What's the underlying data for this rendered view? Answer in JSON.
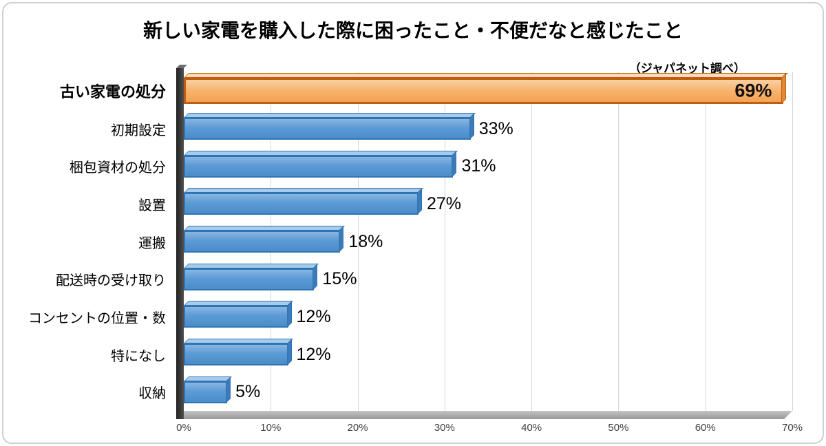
{
  "chart_data": {
    "type": "bar",
    "orientation": "horizontal",
    "title": "新しい家電を購入した際に困ったこと・不便だなと感じたこと",
    "source_note": "（ジャパネット調べ）",
    "categories": [
      "古い家電の処分",
      "初期設定",
      "梱包資材の処分",
      "設置",
      "運搬",
      "配送時の受け取り",
      "コンセントの位置・数",
      "特になし",
      "収納"
    ],
    "values": [
      69,
      33,
      31,
      27,
      18,
      15,
      12,
      12,
      5
    ],
    "value_labels": [
      "69%",
      "33%",
      "31%",
      "27%",
      "18%",
      "15%",
      "12%",
      "12%",
      "5%"
    ],
    "xlim": [
      0,
      70
    ],
    "x_ticks": [
      "0%",
      "10%",
      "20%",
      "30%",
      "40%",
      "50%",
      "60%",
      "70%"
    ],
    "highlight_index": 0,
    "grid": true,
    "legend_position": "none",
    "colors": {
      "bar_fill": "#5B9BD5",
      "bar_border": "#2E75B6",
      "highlight_fill": "#F8B26C",
      "highlight_border": "#C05E10",
      "gridline": "#D6D6D6",
      "wall": "#3A3A3A",
      "floor": "#A8A8A8"
    }
  }
}
